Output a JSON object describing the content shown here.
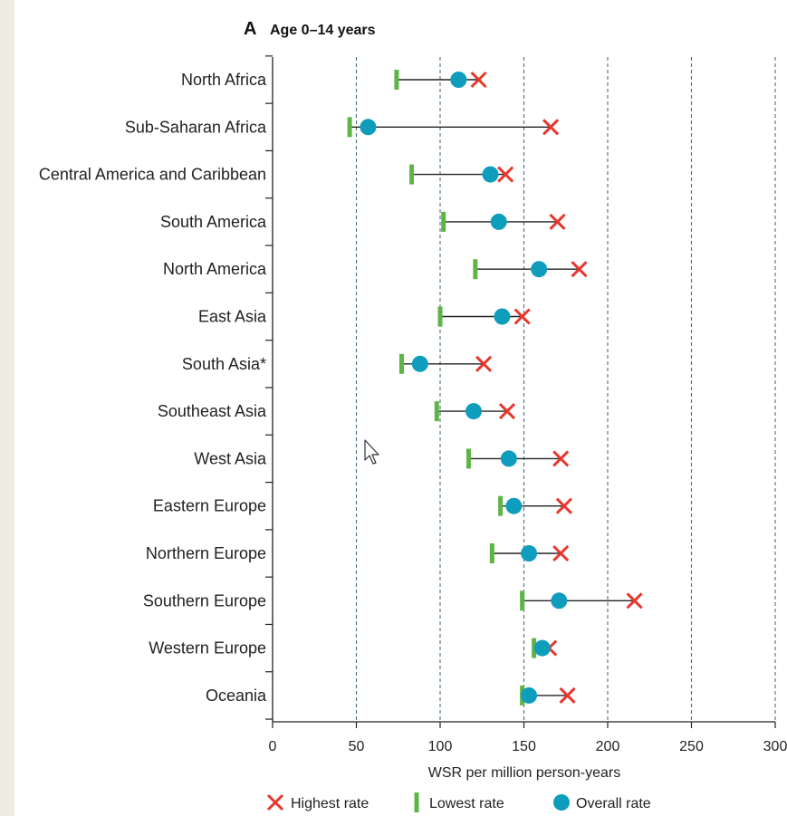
{
  "chart_data": {
    "type": "range-dot",
    "title": {
      "letter": "A",
      "text": "Age 0–14 years"
    },
    "xlabel": "WSR per million person-years",
    "xlim": [
      0,
      300
    ],
    "xticks": [
      "0",
      "50",
      "100",
      "150",
      "200",
      "250",
      "300"
    ],
    "xtick_values": [
      0,
      50,
      100,
      150,
      200,
      250,
      300
    ],
    "vgrid_values": [
      50,
      100,
      150,
      200,
      250,
      300
    ],
    "categories": [
      "North Africa",
      "Sub-Saharan Africa",
      "Central America and Caribbean",
      "South America",
      "North America",
      "East Asia",
      "South Asia*",
      "Southeast Asia",
      "West Asia",
      "Eastern Europe",
      "Northern Europe",
      "Southern Europe",
      "Western Europe",
      "Oceania"
    ],
    "series": [
      {
        "name": "Highest rate",
        "values": [
          123,
          166,
          139,
          170,
          183,
          149,
          126,
          140,
          172,
          174,
          172,
          216,
          165,
          176
        ]
      },
      {
        "name": "Lowest rate",
        "values": [
          74,
          46,
          83,
          102,
          121,
          100,
          77,
          98,
          117,
          136,
          131,
          149,
          156,
          149
        ]
      },
      {
        "name": "Overall rate",
        "values": [
          111,
          57,
          130,
          135,
          159,
          137,
          88,
          120,
          141,
          144,
          153,
          171,
          161,
          153
        ]
      }
    ],
    "colors": {
      "highest": "#e8372d",
      "lowest": "#5fb446",
      "overall": "#0f9dbd",
      "line": "#222222",
      "grid": "#4a6f80"
    },
    "legend_position": "bottom",
    "grid": "vertical-dashed"
  }
}
